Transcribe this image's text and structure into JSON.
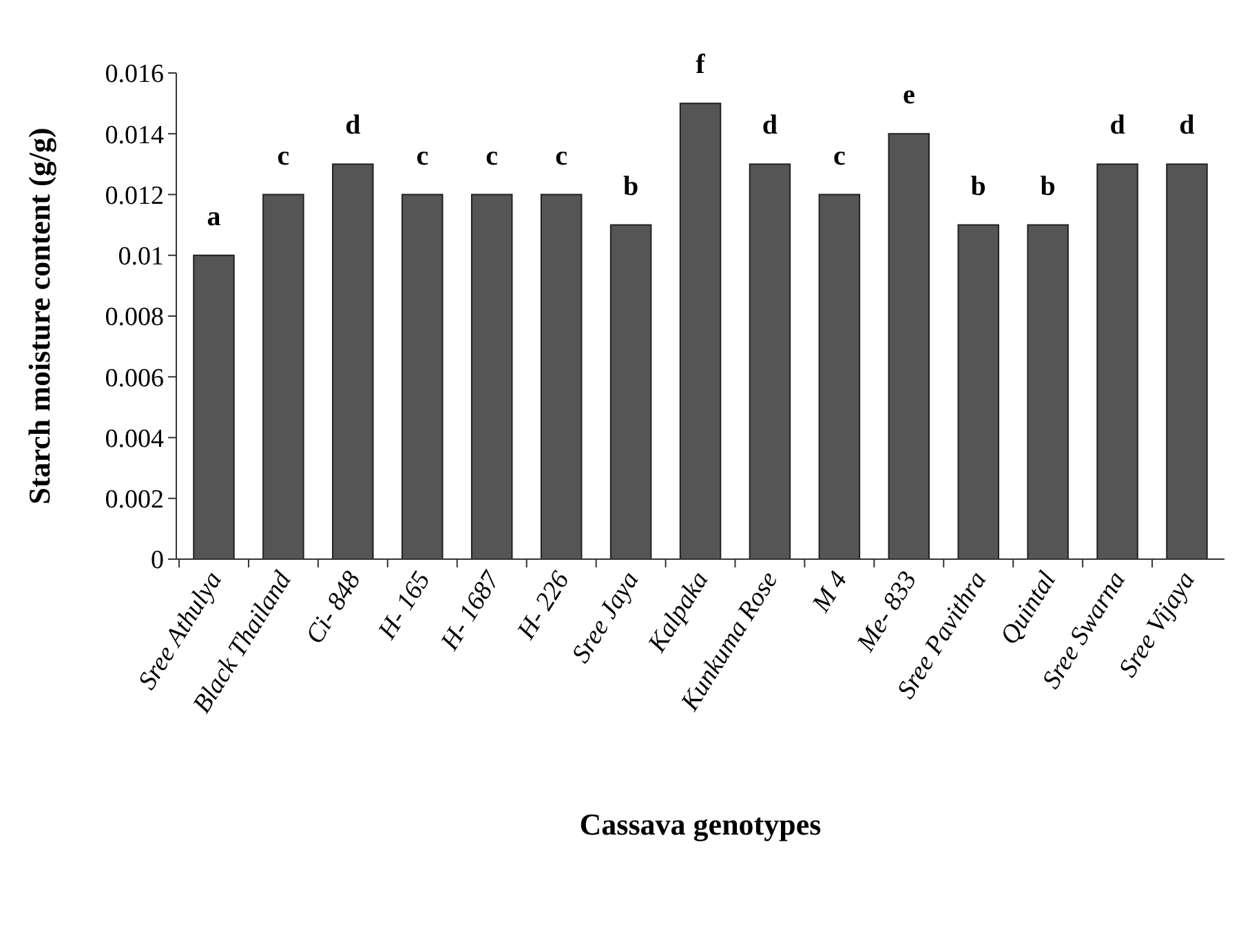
{
  "chart_data": {
    "type": "bar",
    "xlabel": "Cassava genotypes",
    "ylabel": "Starch moisture content (g/g)",
    "categories": [
      "Sree Athulya",
      "Black Thailand",
      "Ci- 848",
      "H- 165",
      "H- 1687",
      "H- 226",
      "Sree Jaya",
      "Kalpaka",
      "Kunkuma Rose",
      "M 4",
      "Me- 833",
      "Sree Pavithra",
      "Quintal",
      "Sree Swarna",
      "Sree Vijaya"
    ],
    "values": [
      0.01,
      0.012,
      0.013,
      0.012,
      0.012,
      0.012,
      0.011,
      0.015,
      0.013,
      0.012,
      0.014,
      0.011,
      0.011,
      0.013,
      0.013
    ],
    "color": "#555555",
    "ylim": [
      0,
      0.016
    ],
    "yticks": [
      0,
      0.002,
      0.004,
      0.006,
      0.008,
      0.01,
      0.012,
      0.014,
      0.016
    ],
    "grid": false,
    "annotations": [
      {
        "text": "a",
        "x": "Sree Athulya",
        "y": 0.01
      },
      {
        "text": "c",
        "x": "Black Thailand",
        "y": 0.012
      },
      {
        "text": "d",
        "x": "Ci- 848",
        "y": 0.013
      },
      {
        "text": "c",
        "x": "H- 165",
        "y": 0.012
      },
      {
        "text": "c",
        "x": "H- 1687",
        "y": 0.012
      },
      {
        "text": "c",
        "x": "H- 226",
        "y": 0.012
      },
      {
        "text": "b",
        "x": "Sree Jaya",
        "y": 0.011
      },
      {
        "text": "f",
        "x": "Kalpaka",
        "y": 0.015
      },
      {
        "text": "d",
        "x": "Kunkuma Rose",
        "y": 0.013
      },
      {
        "text": "c",
        "x": "M 4",
        "y": 0.012
      },
      {
        "text": "e",
        "x": "Me- 833",
        "y": 0.014
      },
      {
        "text": "b",
        "x": "Sree Pavithra",
        "y": 0.011
      },
      {
        "text": "b",
        "x": "Quintal",
        "y": 0.011
      },
      {
        "text": "d",
        "x": "Sree Swarna",
        "y": 0.013
      },
      {
        "text": "d",
        "x": "Sree Vijaya",
        "y": 0.013
      }
    ]
  }
}
